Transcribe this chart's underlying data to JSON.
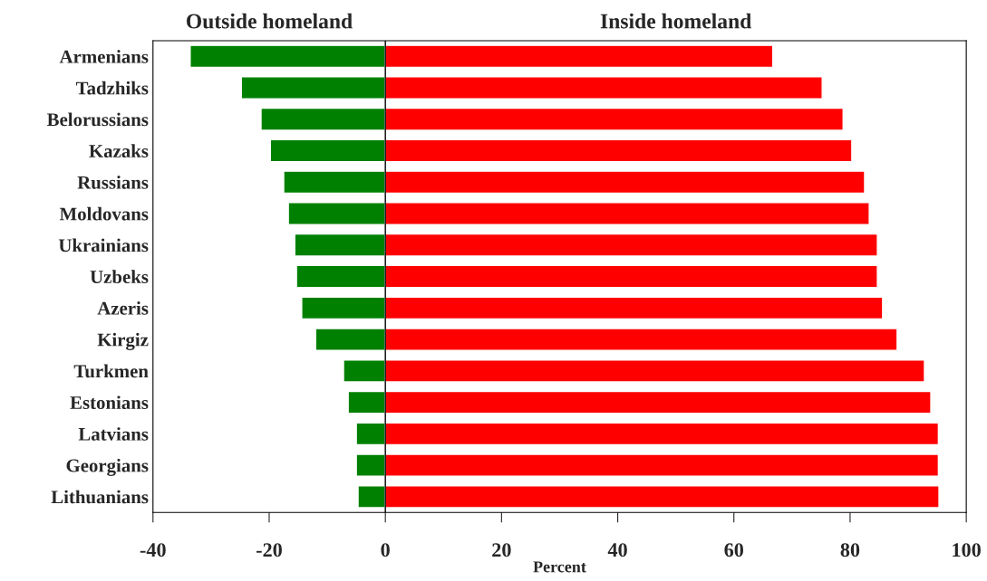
{
  "chart_data": {
    "type": "bar",
    "orientation": "horizontal",
    "xlabel": "Percent",
    "categories": [
      "Armenians",
      "Tadzhiks",
      "Belorussians",
      "Kazaks",
      "Russians",
      "Moldovans",
      "Ukrainians",
      "Uzbeks",
      "Azeris",
      "Kirgiz",
      "Turkmen",
      "Estonians",
      "Latvians",
      "Georgians",
      "Lithuanians"
    ],
    "series": [
      {
        "name": "Outside homeland",
        "color": "#008000",
        "values": [
          -33.6,
          -24.8,
          -21.4,
          -19.8,
          -17.5,
          -16.7,
          -15.6,
          -15.3,
          -14.4,
          -12.0,
          -7.2,
          -6.4,
          -5.0,
          -5.0,
          -4.7
        ]
      },
      {
        "name": "Inside homeland",
        "color": "#ff0000",
        "values": [
          66.7,
          75.2,
          78.8,
          80.3,
          82.5,
          83.3,
          84.7,
          84.7,
          85.6,
          88.1,
          92.8,
          93.9,
          95.2,
          95.2,
          95.3
        ]
      }
    ],
    "stacked": true,
    "ref_lines": [
      {
        "axis": "x",
        "value": 0,
        "color": "#000000"
      }
    ],
    "xlim": [
      -40,
      100
    ],
    "xticks": [
      -40,
      -20,
      0,
      20,
      40,
      60,
      80,
      100
    ],
    "grid": false,
    "legend": false
  }
}
